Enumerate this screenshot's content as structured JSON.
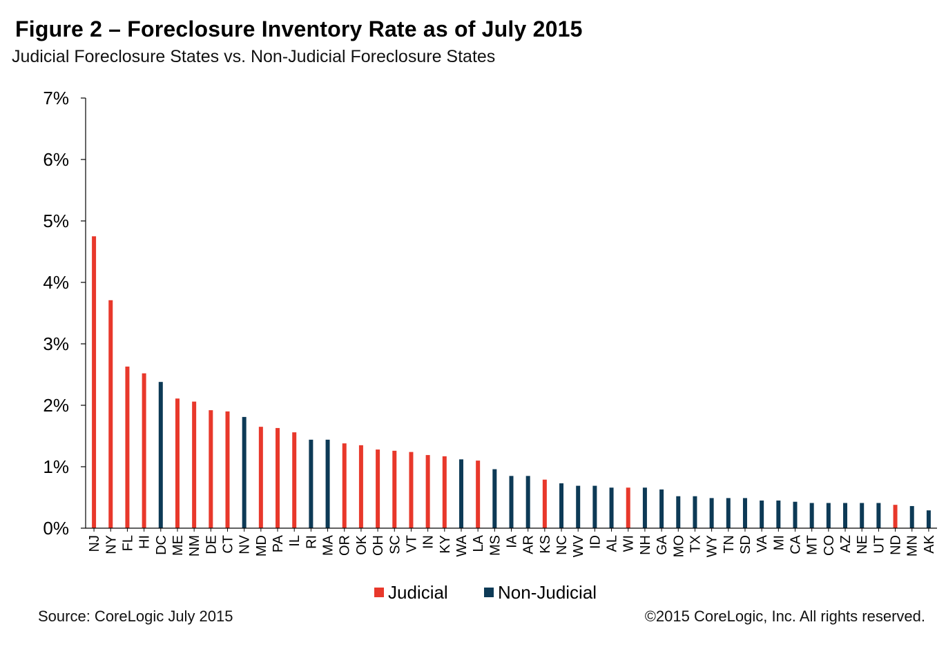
{
  "title": "Figure 2 – Foreclosure Inventory Rate as of July 2015",
  "subtitle": "Judicial Foreclosure States vs. Non-Judicial Foreclosure States",
  "source": "Source: CoreLogic  July 2015",
  "copyright": "©2015 CoreLogic, Inc.  All rights reserved.",
  "colors": {
    "judicial": "#e8382b",
    "non_judicial": "#0d3a56"
  },
  "chart_data": {
    "type": "bar",
    "ylim": [
      0,
      7
    ],
    "y_ticks": [
      "0%",
      "1%",
      "2%",
      "3%",
      "4%",
      "5%",
      "6%",
      "7%"
    ],
    "legend": {
      "placement": "bottom",
      "entries": [
        "Judicial",
        "Non-Judicial"
      ]
    },
    "grid": false,
    "categories": [
      "NJ",
      "NY",
      "FL",
      "HI",
      "DC",
      "ME",
      "NM",
      "DE",
      "CT",
      "NV",
      "MD",
      "PA",
      "IL",
      "RI",
      "MA",
      "OR",
      "OK",
      "OH",
      "SC",
      "VT",
      "IN",
      "KY",
      "WA",
      "LA",
      "MS",
      "IA",
      "AR",
      "KS",
      "NC",
      "WV",
      "ID",
      "AL",
      "WI",
      "NH",
      "GA",
      "MO",
      "TX",
      "WY",
      "TN",
      "SD",
      "VA",
      "MI",
      "CA",
      "MT",
      "CO",
      "AZ",
      "NE",
      "UT",
      "ND",
      "MN",
      "AK"
    ],
    "values": [
      4.75,
      3.71,
      2.63,
      2.52,
      2.38,
      2.11,
      2.06,
      1.92,
      1.9,
      1.81,
      1.65,
      1.63,
      1.56,
      1.44,
      1.44,
      1.38,
      1.35,
      1.28,
      1.26,
      1.24,
      1.19,
      1.17,
      1.12,
      1.1,
      0.96,
      0.85,
      0.85,
      0.79,
      0.73,
      0.69,
      0.69,
      0.66,
      0.66,
      0.66,
      0.63,
      0.52,
      0.52,
      0.49,
      0.49,
      0.49,
      0.45,
      0.45,
      0.43,
      0.41,
      0.41,
      0.41,
      0.41,
      0.41,
      0.38,
      0.36,
      0.29
    ],
    "series_type": [
      "Judicial",
      "Judicial",
      "Judicial",
      "Judicial",
      "Non-Judicial",
      "Judicial",
      "Judicial",
      "Judicial",
      "Judicial",
      "Non-Judicial",
      "Judicial",
      "Judicial",
      "Judicial",
      "Non-Judicial",
      "Non-Judicial",
      "Judicial",
      "Judicial",
      "Judicial",
      "Judicial",
      "Judicial",
      "Judicial",
      "Judicial",
      "Non-Judicial",
      "Judicial",
      "Non-Judicial",
      "Non-Judicial",
      "Non-Judicial",
      "Judicial",
      "Non-Judicial",
      "Non-Judicial",
      "Non-Judicial",
      "Non-Judicial",
      "Judicial",
      "Non-Judicial",
      "Non-Judicial",
      "Non-Judicial",
      "Non-Judicial",
      "Non-Judicial",
      "Non-Judicial",
      "Non-Judicial",
      "Non-Judicial",
      "Non-Judicial",
      "Non-Judicial",
      "Non-Judicial",
      "Non-Judicial",
      "Non-Judicial",
      "Non-Judicial",
      "Non-Judicial",
      "Judicial",
      "Non-Judicial",
      "Non-Judicial"
    ]
  }
}
